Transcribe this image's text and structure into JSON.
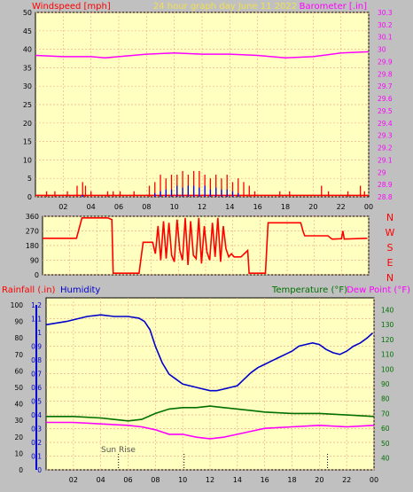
{
  "header": {
    "left_title": "Windspeed [mph]",
    "center_title": "24 hour graph day   June 11 2022",
    "right_title": "Barometer [.in]"
  },
  "humidity_header": {
    "rainfall": "Rainfall (.in)",
    "humidity": "Humidity",
    "temperature": "Temperature (°F)",
    "dew_point": "Dew Point (°F)"
  },
  "compass": [
    "N",
    "W",
    "S",
    "E",
    "N"
  ],
  "annotations": {
    "sunrise": "Sun Rise"
  },
  "colors": {
    "plot_bg": "#ffffc0",
    "frame_bg": "#c0c0c0",
    "grid": "#f0b090",
    "wind_gust": "#ff0000",
    "wind_avg": "#0000ff",
    "wind_low": "#008000",
    "barometer": "#ff00ff",
    "direction": "#ff0000",
    "humidity": "#0000cc",
    "temperature": "#007000",
    "dew_point": "#ff00ff",
    "rain": "#0000cc"
  },
  "chart_data": [
    {
      "type": "line",
      "title": "24 hour graph day   June 11 2022",
      "ylabel": "Windspeed [mph]",
      "y2label": "Barometer [.in]",
      "x_ticks": [
        "02",
        "04",
        "06",
        "08",
        "10",
        "12",
        "14",
        "16",
        "18",
        "20",
        "22",
        "00"
      ],
      "ylim": [
        0,
        50
      ],
      "y_ticks": [
        0,
        5,
        10,
        15,
        20,
        25,
        30,
        35,
        40,
        45,
        50
      ],
      "y2lim": [
        28.8,
        30.3
      ],
      "y2_ticks": [
        "28.8",
        "28.9",
        "29",
        "29.1",
        "29.2",
        "29.3",
        "29.4",
        "29.5",
        "29.6",
        "29.7",
        "29.8",
        "29.9",
        "30",
        "30.1",
        "30.2",
        "30.3"
      ],
      "series": [
        {
          "name": "Barometer",
          "axis": "right",
          "x": [
            0,
            2,
            4,
            5,
            6,
            8,
            10,
            12,
            14,
            16,
            18,
            20,
            22,
            24
          ],
          "y": [
            29.95,
            29.94,
            29.94,
            29.93,
            29.94,
            29.96,
            29.97,
            29.96,
            29.96,
            29.95,
            29.93,
            29.94,
            29.97,
            29.98
          ]
        },
        {
          "name": "Wind gust",
          "axis": "left",
          "x": [
            0.8,
            1.4,
            2.3,
            3.0,
            3.4,
            3.6,
            4.0,
            5.2,
            5.6,
            6.1,
            7.1,
            8.2,
            8.6,
            9.0,
            9.4,
            9.8,
            10.2,
            10.6,
            11.0,
            11.4,
            11.8,
            12.2,
            12.6,
            13.0,
            13.4,
            13.8,
            14.2,
            14.6,
            15.0,
            15.4,
            15.8,
            17.6,
            18.3,
            20.6,
            21.1,
            22.5,
            23.4,
            23.7
          ],
          "y": [
            1.5,
            1.5,
            1.5,
            3,
            4,
            3,
            1.5,
            1.5,
            1.5,
            1.5,
            1.5,
            3,
            4,
            6,
            5,
            6,
            6,
            7,
            6,
            7,
            7,
            6,
            5,
            6,
            5,
            6,
            4,
            5,
            4,
            3,
            1.5,
            1.5,
            1.5,
            3,
            1.5,
            1.5,
            3,
            1.5
          ]
        },
        {
          "name": "Wind average",
          "axis": "left",
          "x": [
            3.4,
            8.6,
            9.0,
            9.4,
            9.8,
            10.2,
            10.6,
            11.0,
            11.4,
            11.8,
            12.2,
            12.6,
            13.0,
            13.4,
            13.8,
            14.2,
            14.6
          ],
          "y": [
            0.5,
            1,
            1.5,
            2,
            2,
            3,
            2.5,
            3,
            3,
            2.5,
            3,
            2,
            2.5,
            2,
            2,
            1.5,
            1
          ]
        }
      ]
    },
    {
      "type": "line",
      "ylabel": "Wind direction",
      "ylim": [
        0,
        360
      ],
      "y_ticks": [
        0,
        90,
        180,
        270,
        360
      ],
      "series": [
        {
          "name": "Direction",
          "x": [
            0,
            2.5,
            2.9,
            4.8,
            5.1,
            5.2,
            7.1,
            7.4,
            8.1,
            8.3,
            8.5,
            8.7,
            8.9,
            9.1,
            9.3,
            9.5,
            9.7,
            9.9,
            10.1,
            10.3,
            10.5,
            10.7,
            10.9,
            11.1,
            11.3,
            11.5,
            11.7,
            11.9,
            12.1,
            12.3,
            12.5,
            12.7,
            12.9,
            13.1,
            13.3,
            13.5,
            13.7,
            13.9,
            14.1,
            14.6,
            15.1,
            15.2,
            16.4,
            16.6,
            19.0,
            19.2,
            19.3,
            21.0,
            21.3,
            21.4,
            22.0,
            22.1,
            22.2,
            23.9
          ],
          "y": [
            225,
            225,
            350,
            350,
            340,
            10,
            10,
            200,
            200,
            130,
            300,
            90,
            330,
            100,
            320,
            120,
            80,
            340,
            150,
            90,
            350,
            60,
            330,
            120,
            100,
            350,
            70,
            300,
            140,
            90,
            320,
            110,
            350,
            80,
            300,
            160,
            110,
            130,
            110,
            110,
            150,
            10,
            10,
            320,
            320,
            260,
            240,
            240,
            220,
            220,
            222,
            270,
            220,
            225
          ]
        }
      ]
    },
    {
      "type": "line",
      "ylabel": "Rainfall (.in)",
      "y2label": "Temperature (°F)",
      "y3label": "Humidity",
      "x_ticks": [
        "02",
        "04",
        "06",
        "08",
        "10",
        "12",
        "14",
        "16",
        "18",
        "20",
        "22",
        "00"
      ],
      "rain_ticks": [
        "0",
        "0.1",
        "0.2",
        "0.3",
        "0.4",
        "0.5",
        "0.6",
        "0.7",
        "0.8",
        "0.9",
        "1",
        "1.1",
        "1.2"
      ],
      "humidity_ticks": [
        0,
        10,
        20,
        30,
        40,
        50,
        60,
        70,
        80,
        90,
        100
      ],
      "temp_ticks": [
        40,
        50,
        60,
        70,
        80,
        90,
        100,
        110,
        120,
        130,
        140
      ],
      "temp_lim": [
        32,
        148
      ],
      "series": [
        {
          "name": "Humidity",
          "x": [
            0,
            1.5,
            3,
            4,
            5,
            6,
            6.8,
            7.2,
            7.6,
            8,
            8.5,
            9,
            9.5,
            10,
            10.5,
            11,
            11.5,
            12,
            12.5,
            13,
            13.5,
            14,
            14.5,
            15,
            15.5,
            16,
            16.5,
            17,
            17.5,
            18,
            18.5,
            19,
            19.5,
            20,
            20.5,
            21,
            21.5,
            22,
            22.5,
            23,
            23.5,
            23.9
          ],
          "y": [
            88,
            90,
            93,
            94,
            93,
            93,
            92,
            90,
            85,
            75,
            65,
            58,
            55,
            52,
            51,
            50,
            49,
            48,
            48,
            49,
            50,
            51,
            55,
            59,
            62,
            64,
            66,
            68,
            70,
            72,
            75,
            76,
            77,
            76,
            73,
            71,
            70,
            72,
            75,
            77,
            80,
            83
          ]
        },
        {
          "name": "Temperature",
          "x": [
            0,
            2,
            4,
            6,
            7,
            8,
            9,
            10,
            11,
            12,
            13,
            14,
            15,
            16,
            18,
            20,
            22,
            24
          ],
          "y": [
            68,
            68,
            67,
            65,
            66,
            70,
            73,
            74,
            74,
            75,
            74,
            73,
            72,
            71,
            70,
            70,
            69,
            68
          ]
        },
        {
          "name": "Dew Point",
          "x": [
            0,
            2,
            4,
            6,
            7,
            8,
            9,
            10,
            11,
            12,
            13,
            14,
            15,
            16,
            18,
            20,
            22,
            24
          ],
          "y": [
            64,
            64,
            63,
            62,
            61,
            59,
            56,
            56,
            54,
            53,
            54,
            56,
            58,
            60,
            61,
            62,
            61,
            62
          ]
        }
      ],
      "markers": [
        {
          "label": "Sun Rise",
          "x": 5.3
        },
        {
          "label": "",
          "x": 10.1
        },
        {
          "label": "",
          "x": 20.6
        }
      ]
    }
  ]
}
